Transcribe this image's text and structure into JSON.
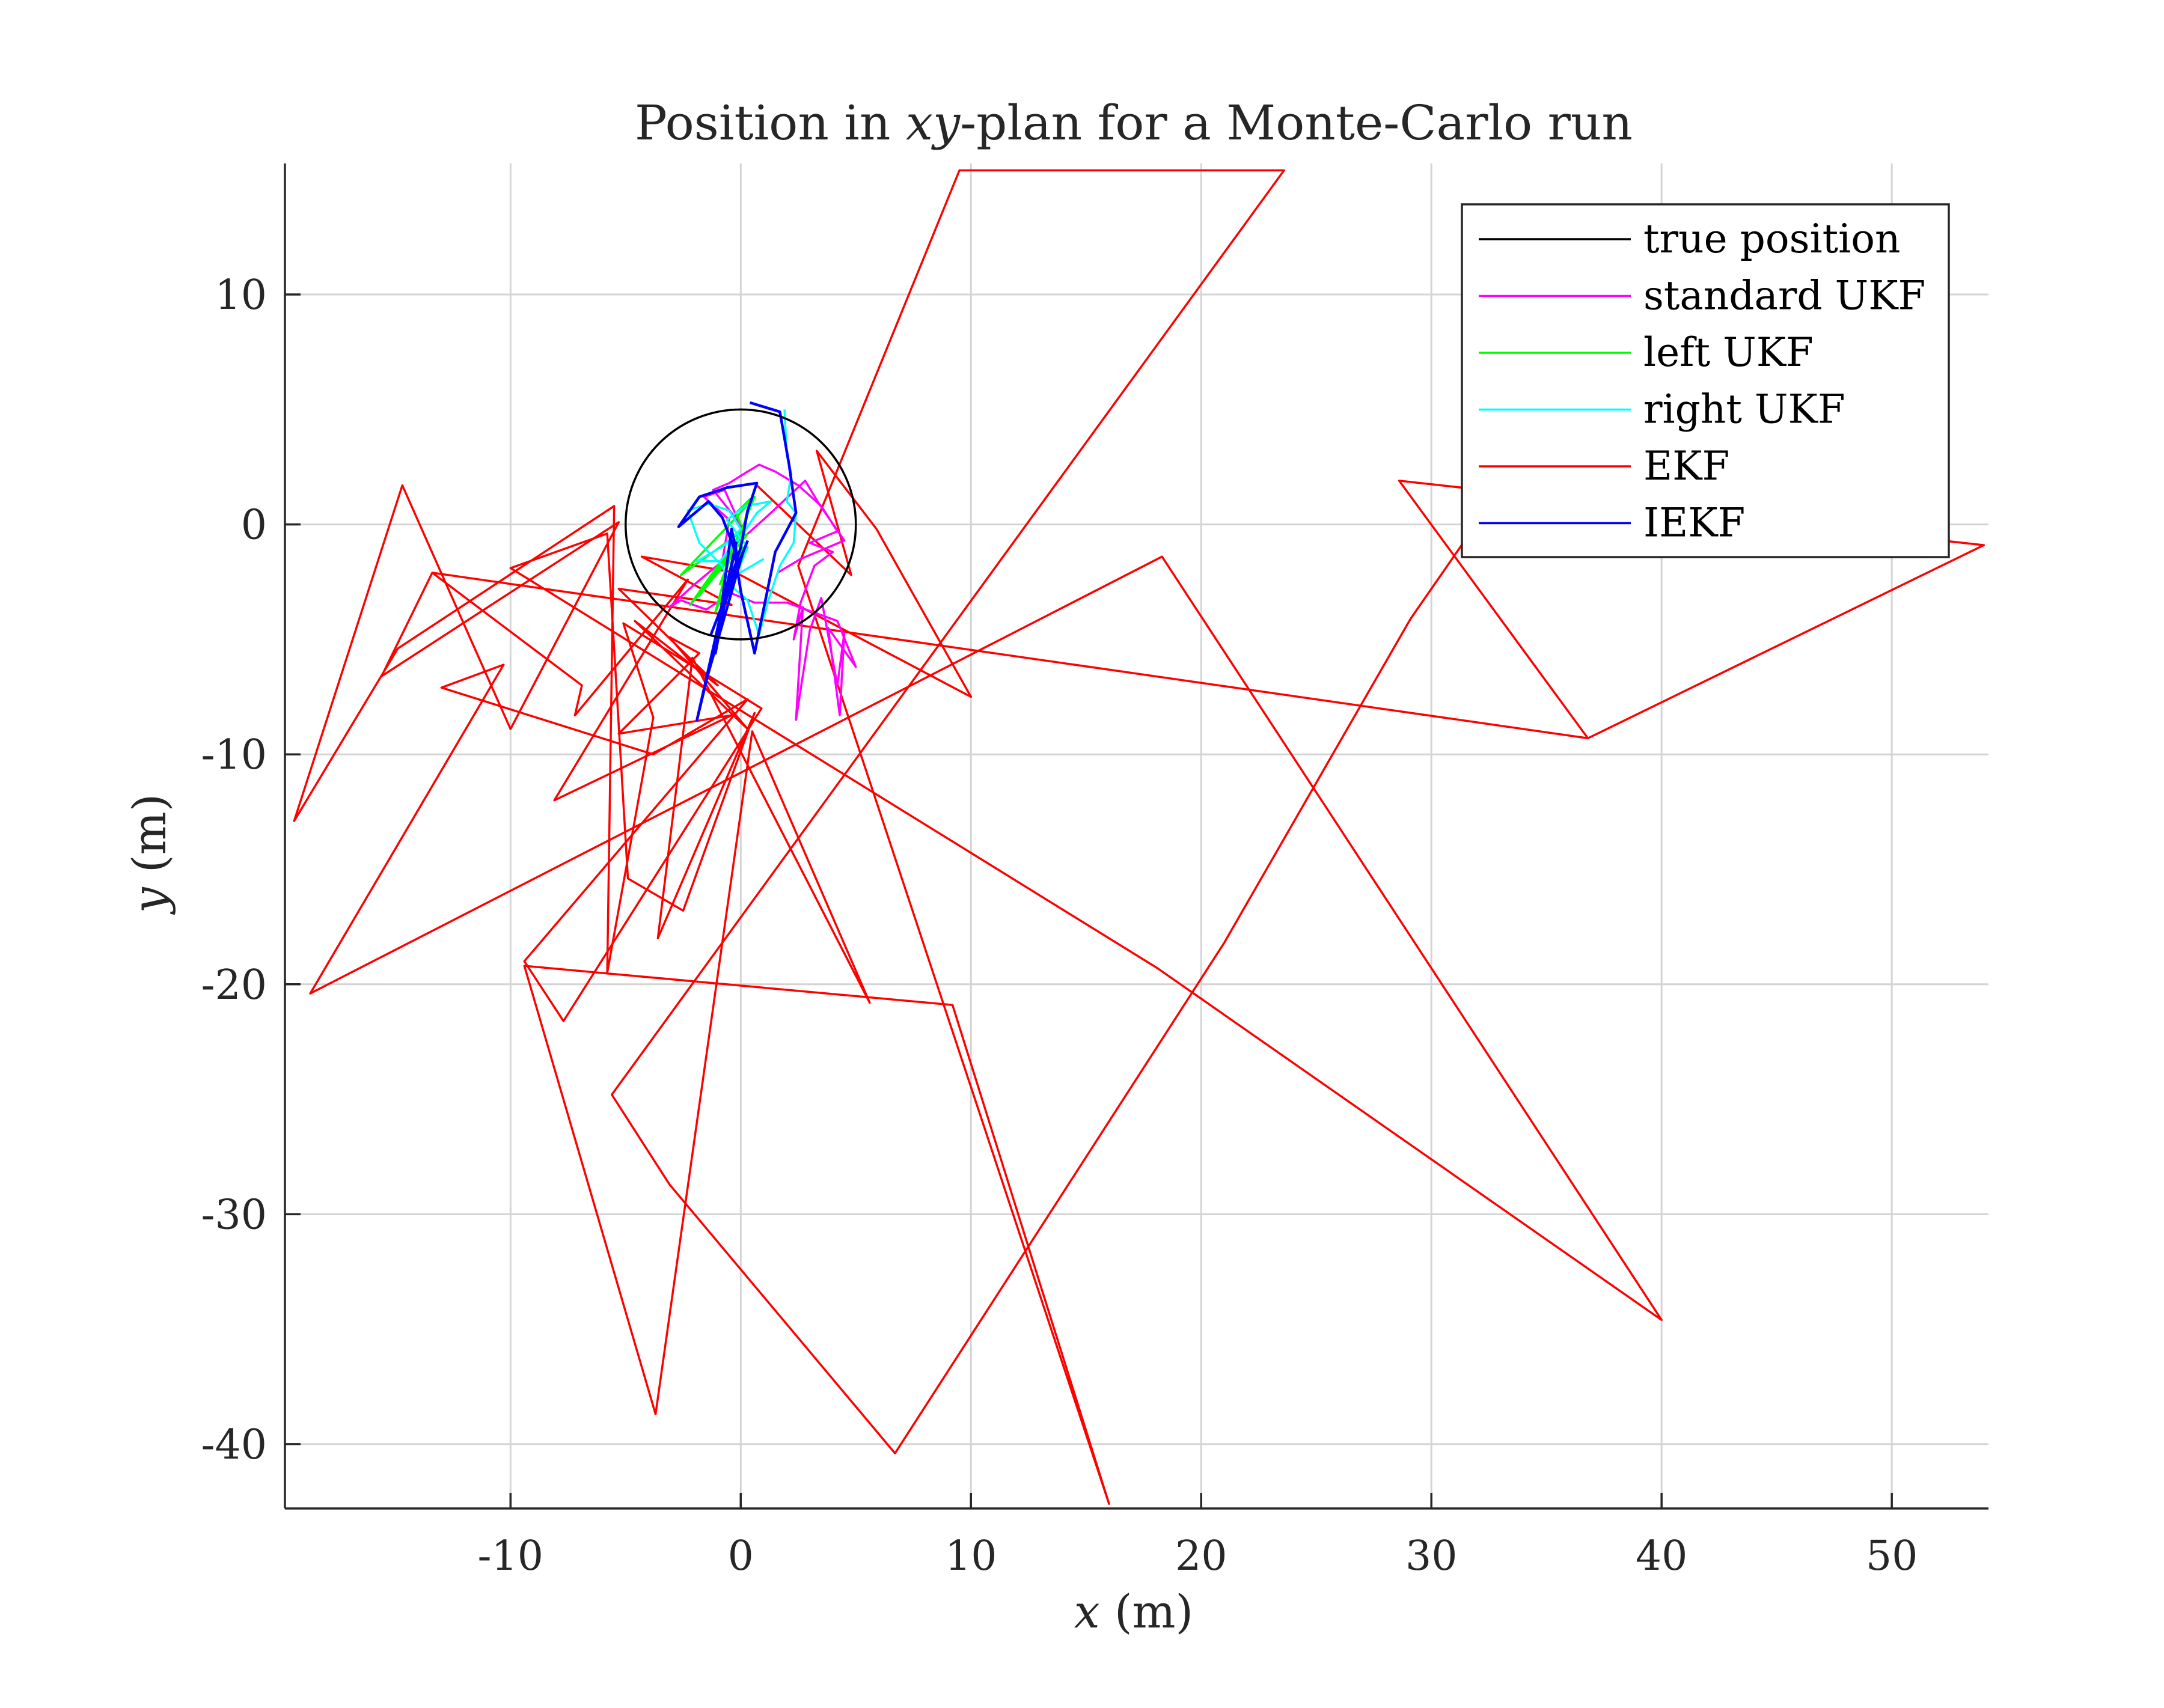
{
  "chart_data": {
    "type": "line",
    "title": "Position in xy-plan for a Monte-Carlo run",
    "title_parts": [
      "Position in ",
      "xy",
      "-plan for a Monte-Carlo run"
    ],
    "xlabel": "x (m)",
    "xlabel_parts": [
      "x",
      " (m)"
    ],
    "ylabel": "y (m)",
    "ylabel_parts": [
      "y",
      " (m)"
    ],
    "xlim": [
      -19.8,
      54.2
    ],
    "ylim": [
      -42.8,
      15.7
    ],
    "xticks": [
      -10,
      0,
      10,
      20,
      30,
      40,
      50
    ],
    "xtick_labels": [
      "-10",
      "0",
      "10",
      "20",
      "30",
      "40",
      "50"
    ],
    "yticks": [
      -40,
      -30,
      -20,
      -10,
      0,
      10
    ],
    "ytick_labels": [
      "-40",
      "-30",
      "-20",
      "-10",
      "0",
      "10"
    ],
    "grid": true,
    "legend_position": "top-right",
    "series": [
      {
        "name": "true position",
        "color": "#000000",
        "shape": "circle",
        "center": [
          0,
          0
        ],
        "radius": 5
      },
      {
        "name": "standard UKF",
        "color": "#ff00ff",
        "points": [
          [
            0,
            0
          ],
          [
            -1.2,
            1.5
          ],
          [
            -0.5,
            1.8
          ],
          [
            0.3,
            2.3
          ],
          [
            0.8,
            2.6
          ],
          [
            1.5,
            2.3
          ],
          [
            2.5,
            1.7
          ],
          [
            3.5,
            0.8
          ],
          [
            4.2,
            -0.3
          ],
          [
            3.0,
            -0.8
          ],
          [
            4.0,
            -1.2
          ],
          [
            3.2,
            -1.8
          ],
          [
            2.6,
            -3.4
          ],
          [
            2.3,
            -5.0
          ],
          [
            2.7,
            -3.6
          ],
          [
            2.4,
            -8.5
          ],
          [
            3.0,
            -4.6
          ],
          [
            3.5,
            -3.2
          ],
          [
            4.2,
            -7.0
          ],
          [
            4.5,
            -4.7
          ],
          [
            4.3,
            -8.3
          ],
          [
            3.8,
            -4.5
          ],
          [
            5.0,
            -6.2
          ],
          [
            4.2,
            -4.2
          ],
          [
            2.0,
            -3.4
          ],
          [
            0.6,
            -3.4
          ],
          [
            -0.4,
            -3.0
          ],
          [
            -1.5,
            -3.7
          ],
          [
            -2.6,
            -3.3
          ],
          [
            -3.1,
            -3.6
          ],
          [
            -2.0,
            -2.6
          ],
          [
            -0.8,
            -1.6
          ],
          [
            -0.5,
            0.2
          ],
          [
            -1.6,
            1.2
          ],
          [
            -0.7,
            1.5
          ],
          [
            0.2,
            -0.5
          ],
          [
            1.2,
            0.4
          ],
          [
            2.8,
            1.9
          ],
          [
            3.4,
            0.9
          ],
          [
            4.5,
            -0.7
          ],
          [
            2.6,
            -1.5
          ],
          [
            1.6,
            -2.1
          ]
        ]
      },
      {
        "name": "left UKF",
        "color": "#00ff00",
        "points": [
          [
            0,
            0
          ],
          [
            -0.2,
            0.5
          ],
          [
            0.4,
            1.1
          ],
          [
            0.0,
            -0.6
          ],
          [
            -1.5,
            -2.7
          ],
          [
            -0.4,
            -1.4
          ],
          [
            -2.2,
            -3.5
          ],
          [
            -0.3,
            -0.8
          ],
          [
            -1.1,
            -3.8
          ],
          [
            0.1,
            -1.0
          ],
          [
            -0.6,
            -3.2
          ],
          [
            0.2,
            -0.2
          ],
          [
            -2.6,
            -2.2
          ],
          [
            -0.2,
            0.3
          ],
          [
            0.6,
            1.2
          ],
          [
            -0.9,
            -2.6
          ],
          [
            -0.1,
            -0.5
          ],
          [
            -1.8,
            -3.1
          ],
          [
            0.3,
            -0.4
          ]
        ]
      },
      {
        "name": "right UKF",
        "color": "#00ffff",
        "points": [
          [
            1.9,
            5.0
          ],
          [
            2.0,
            3.0
          ],
          [
            2.2,
            2.2
          ],
          [
            2.0,
            1.0
          ],
          [
            2.4,
            0.5
          ],
          [
            2.3,
            -0.8
          ],
          [
            1.7,
            -1.8
          ],
          [
            1.2,
            -3.3
          ],
          [
            0.8,
            -4.8
          ],
          [
            0.3,
            -3.3
          ],
          [
            -0.5,
            -2.6
          ],
          [
            -0.8,
            -1.8
          ],
          [
            -1.8,
            -0.8
          ],
          [
            -2.3,
            0.6
          ],
          [
            -1.4,
            0.9
          ],
          [
            -0.5,
            0.6
          ],
          [
            0.0,
            -0.2
          ],
          [
            -0.7,
            -0.9
          ],
          [
            -1.9,
            -1.6
          ],
          [
            -0.9,
            -1.6
          ],
          [
            0.1,
            -0.4
          ],
          [
            0.7,
            0.5
          ],
          [
            1.3,
            1.0
          ],
          [
            0.2,
            0.8
          ],
          [
            -0.6,
            0.2
          ],
          [
            0.3,
            -1.0
          ],
          [
            -0.2,
            -2.2
          ],
          [
            1.0,
            -1.5
          ]
        ]
      },
      {
        "name": "EKF",
        "color": "#ff0000",
        "points": [
          [
            0.7,
            1.7
          ],
          [
            4.8,
            -2.2
          ],
          [
            3.3,
            3.2
          ],
          [
            5.9,
            -0.2
          ],
          [
            10.0,
            -7.5
          ],
          [
            -0.2,
            -2.1
          ],
          [
            -4.3,
            -1.4
          ],
          [
            -0.4,
            -3.5
          ],
          [
            -5.3,
            -2.8
          ],
          [
            -1.0,
            -7.0
          ],
          [
            -4.6,
            -4.2
          ],
          [
            0.3,
            -8.9
          ],
          [
            -3.1,
            -4.9
          ],
          [
            -1.8,
            -5.6
          ],
          [
            -5.3,
            -9.1
          ],
          [
            -0.4,
            -8.3
          ],
          [
            -8.1,
            -12.0
          ],
          [
            -2.3,
            -2.4
          ],
          [
            -7.2,
            -8.3
          ],
          [
            -6.9,
            -7.0
          ],
          [
            -13.4,
            -2.1
          ],
          [
            36.8,
            -9.3
          ],
          [
            28.6,
            1.9
          ],
          [
            54.0,
            -0.9
          ],
          [
            36.8,
            -9.3
          ],
          [
            -13.4,
            -2.1
          ],
          [
            -15.6,
            -6.6
          ],
          [
            -5.3,
            0.1
          ],
          [
            -10.0,
            -8.9
          ],
          [
            -14.7,
            1.7
          ],
          [
            -19.4,
            -12.9
          ],
          [
            -14.9,
            -5.4
          ],
          [
            -5.5,
            0.8
          ],
          [
            -5.8,
            -19.5
          ],
          [
            -3.8,
            -8.4
          ],
          [
            -5.1,
            -4.3
          ],
          [
            0.9,
            -8.0
          ],
          [
            -7.7,
            -21.6
          ],
          [
            -9.4,
            -19.0
          ],
          [
            0.3,
            -7.6
          ],
          [
            -3.8,
            -10.0
          ],
          [
            -13.0,
            -7.1
          ],
          [
            -10.3,
            -6.1
          ],
          [
            -18.7,
            -20.4
          ],
          [
            18.3,
            -1.4
          ],
          [
            40.0,
            -34.6
          ],
          [
            18.1,
            -19.3
          ],
          [
            -10.0,
            -1.9
          ],
          [
            -5.8,
            -0.4
          ],
          [
            -4.9,
            -15.4
          ],
          [
            -2.5,
            -16.8
          ],
          [
            0.6,
            -8.2
          ],
          [
            -3.6,
            -18.0
          ],
          [
            -2.1,
            -5.8
          ],
          [
            5.6,
            -20.8
          ],
          [
            0.5,
            -9.0
          ],
          [
            -3.7,
            -38.7
          ],
          [
            -9.4,
            -19.2
          ],
          [
            9.2,
            -20.9
          ],
          [
            16.0,
            -42.6
          ],
          [
            2.5,
            -1.8
          ],
          [
            9.5,
            15.4
          ],
          [
            23.6,
            15.4
          ],
          [
            -5.6,
            -24.8
          ],
          [
            -3.1,
            -28.7
          ],
          [
            6.7,
            -40.4
          ],
          [
            21.0,
            -18.2
          ],
          [
            29.1,
            -4.1
          ],
          [
            34.5,
            3.7
          ]
        ]
      },
      {
        "name": "IEKF",
        "color": "#0000ff",
        "points": [
          [
            0.4,
            5.3
          ],
          [
            1.7,
            4.9
          ],
          [
            2.1,
            2.6
          ],
          [
            2.4,
            0.5
          ],
          [
            1.5,
            -1.2
          ],
          [
            0.6,
            -5.6
          ],
          [
            0.0,
            -2.9
          ],
          [
            -0.3,
            -1.0
          ],
          [
            -0.8,
            0.3
          ],
          [
            -1.4,
            1.0
          ],
          [
            -2.7,
            -0.1
          ],
          [
            -1.8,
            1.2
          ],
          [
            -0.6,
            1.6
          ],
          [
            0.7,
            1.8
          ],
          [
            0.3,
            0.6
          ],
          [
            0.0,
            -1.0
          ],
          [
            -0.5,
            -2.6
          ],
          [
            -1.0,
            -4.5
          ],
          [
            -1.9,
            -8.5
          ],
          [
            -0.7,
            -3.5
          ],
          [
            -0.1,
            -1.6
          ],
          [
            -0.4,
            -0.2
          ],
          [
            -1.1,
            -5.6
          ],
          [
            -0.2,
            -0.8
          ],
          [
            -1.5,
            -6.8
          ],
          [
            0.1,
            -1.2
          ],
          [
            -1.3,
            -4.8
          ],
          [
            0.3,
            -0.7
          ]
        ]
      }
    ]
  }
}
